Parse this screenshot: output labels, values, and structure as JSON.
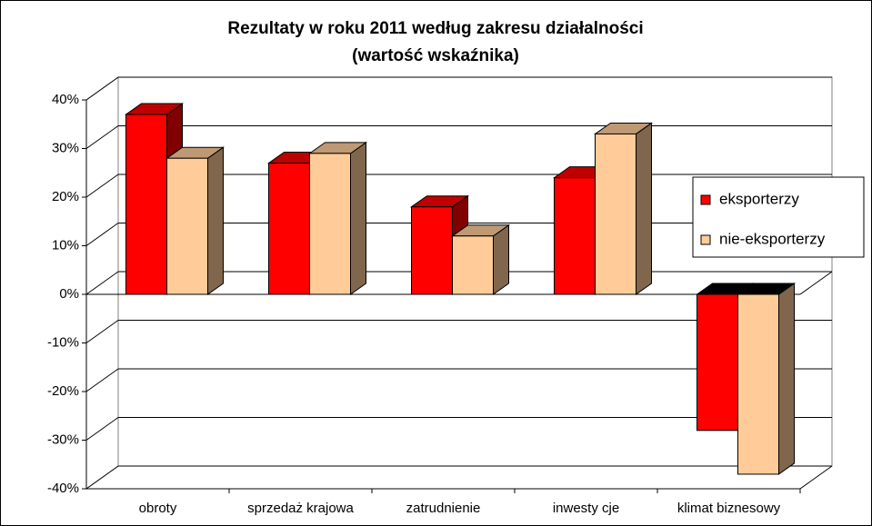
{
  "chart_data": {
    "type": "bar3d",
    "title": "Rezultaty w roku 2011 według zakresu działalności",
    "subtitle": "(wartość wskaźnika)",
    "categories": [
      "obroty",
      "sprzedaż krajowa",
      "zatrudnienie",
      "inwesty cje",
      "klimat biznesowy"
    ],
    "series": [
      {
        "name": "eksporterzy",
        "color": "#ff0000",
        "values": [
          37,
          27,
          18,
          24,
          -28
        ]
      },
      {
        "name": "nie-eksporterzy",
        "color": "#ffcc99",
        "values": [
          28,
          29,
          12,
          33,
          -37
        ]
      }
    ],
    "ylim": [
      -40,
      40
    ],
    "yticks": [
      {
        "value": -40,
        "label": "-40%"
      },
      {
        "value": -30,
        "label": "-30%"
      },
      {
        "value": -20,
        "label": "-20%"
      },
      {
        "value": -10,
        "label": "-10%"
      },
      {
        "value": 0,
        "label": "0%"
      },
      {
        "value": 10,
        "label": "10%"
      },
      {
        "value": 20,
        "label": "20%"
      },
      {
        "value": 30,
        "label": "30%"
      },
      {
        "value": 40,
        "label": "40%"
      }
    ],
    "grid": true,
    "legend": "right"
  }
}
